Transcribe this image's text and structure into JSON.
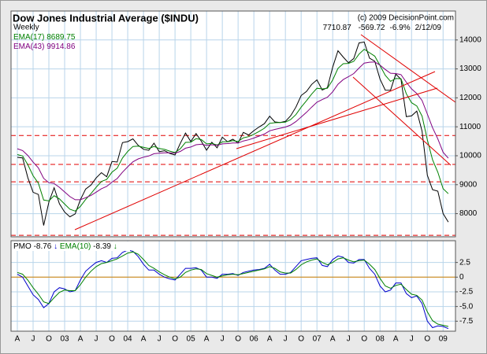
{
  "chart_data": [
    {
      "type": "line",
      "title": "Dow Jones Industrial Average ($INDU)",
      "subtitle": "(c) 2009 DecisionPoint.com",
      "change": -569.72,
      "change_pct": {
        "value": -6.9,
        "label": "-6.9%"
      },
      "date": "2/12/09",
      "categories": [
        "A",
        null,
        null,
        "J",
        null,
        null,
        "O",
        null,
        null,
        "03",
        null,
        null,
        "A",
        null,
        null,
        "J",
        null,
        null,
        "O",
        null,
        null,
        "04",
        null,
        null,
        "A",
        null,
        null,
        "J",
        null,
        null,
        "O",
        null,
        null,
        "05",
        null,
        null,
        "A",
        null,
        null,
        "J",
        null,
        null,
        "O",
        null,
        null,
        "06",
        null,
        null,
        "A",
        null,
        null,
        "J",
        null,
        null,
        "O",
        null,
        null,
        "07",
        null,
        null,
        "A",
        null,
        null,
        "J",
        null,
        null,
        "O",
        null,
        null,
        "08",
        null,
        null,
        "A",
        null,
        null,
        "J",
        null,
        null,
        "O",
        null,
        null,
        "09",
        null
      ],
      "series": [
        {
          "name": "Weekly",
          "color": "#000000",
          "values": [
            9946,
            9925,
            9243,
            8737,
            8663,
            7592,
            8397,
            8896,
            8342,
            8053,
            7891,
            7992,
            8480,
            8850,
            8985,
            9234,
            9416,
            9275,
            9801,
            9782,
            10454,
            10488,
            10583,
            10357,
            10226,
            10188,
            10435,
            10140,
            10174,
            10080,
            10027,
            10428,
            10783,
            10490,
            10766,
            10504,
            10193,
            10467,
            10275,
            10641,
            10482,
            10569,
            10440,
            10806,
            10718,
            10865,
            10993,
            11109,
            11367,
            11168,
            11150,
            11186,
            11381,
            11679,
            12081,
            12221,
            12463,
            12622,
            12269,
            12354,
            13063,
            13628,
            13409,
            13212,
            13358,
            13896,
            13930,
            13372,
            13265,
            12650,
            12266,
            12263,
            12820,
            12638,
            11350,
            11378,
            11544,
            10851,
            9325,
            8829,
            8776,
            8001,
            7710.87
          ]
        },
        {
          "name": "EMA(17)",
          "color": "#008000",
          "values": [
            10040,
            9990,
            9690,
            9310,
            9050,
            8470,
            8440,
            8620,
            8510,
            8330,
            8150,
            8090,
            8250,
            8490,
            8690,
            8910,
            9110,
            9180,
            9430,
            9570,
            9920,
            10150,
            10320,
            10330,
            10290,
            10250,
            10320,
            10250,
            10220,
            10160,
            10110,
            10240,
            10460,
            10470,
            10590,
            10560,
            10410,
            10430,
            10370,
            10480,
            10480,
            10520,
            10490,
            10620,
            10660,
            10740,
            10840,
            10950,
            11120,
            11140,
            11150,
            11160,
            11250,
            11420,
            11680,
            11900,
            12130,
            12330,
            12310,
            12330,
            12620,
            13020,
            13180,
            13190,
            13260,
            13510,
            13680,
            13560,
            13440,
            13120,
            12780,
            12570,
            12670,
            12660,
            12140,
            11830,
            11720,
            11370,
            10550,
            9860,
            9430,
            8860,
            8689.75
          ]
        },
        {
          "name": "EMA(43)",
          "color": "#800080",
          "values": [
            10240,
            10180,
            10010,
            9780,
            9580,
            9220,
            9070,
            9040,
            8910,
            8750,
            8590,
            8480,
            8480,
            8550,
            8630,
            8740,
            8860,
            8940,
            9090,
            9210,
            9430,
            9620,
            9790,
            9890,
            9950,
            9990,
            10070,
            10090,
            10100,
            10100,
            10090,
            10150,
            10260,
            10300,
            10380,
            10400,
            10360,
            10380,
            10360,
            10410,
            10420,
            10440,
            10440,
            10510,
            10550,
            10610,
            10680,
            10750,
            10860,
            10910,
            10950,
            10990,
            11060,
            11180,
            11340,
            11500,
            11680,
            11850,
            11940,
            12020,
            12210,
            12470,
            12630,
            12730,
            12840,
            13030,
            13200,
            13230,
            13240,
            13130,
            12980,
            12850,
            12840,
            12800,
            12540,
            12310,
            12150,
            11910,
            11440,
            10970,
            10580,
            10120,
            9914.86
          ]
        }
      ],
      "ylim": [
        7200,
        15000
      ],
      "yticks": [
        8000,
        9000,
        10000,
        11000,
        12000,
        13000,
        14000
      ],
      "hlines": [
        7250,
        9100,
        9700,
        10700
      ],
      "grid": true
    },
    {
      "type": "line",
      "series": [
        {
          "name": "PMO",
          "color": "#0000cc",
          "values": [
            0.5,
            0,
            -1.5,
            -3,
            -3.8,
            -5.2,
            -4.5,
            -2.5,
            -1.8,
            -2,
            -2.5,
            -2.3,
            -0.5,
            1,
            1.8,
            2.5,
            2.8,
            2.5,
            3.2,
            3.3,
            4.2,
            4.6,
            4.4,
            3.5,
            2.2,
            1.2,
            1.2,
            0.5,
            0,
            -0.3,
            -0.5,
            0.5,
            1.5,
            1.5,
            1.6,
            1.2,
            0,
            0,
            -0.2,
            0.5,
            0.5,
            0.6,
            0.3,
            0.8,
            1,
            1.2,
            1.3,
            1.5,
            2.2,
            1.2,
            0.5,
            0.5,
            0.8,
            1.8,
            2.8,
            3,
            3.2,
            3.3,
            2,
            1.8,
            3,
            3.6,
            3.4,
            2.5,
            2.4,
            3,
            3,
            1.5,
            0.5,
            -1.5,
            -2.5,
            -2.2,
            -1,
            -1,
            -2.8,
            -3.5,
            -3.2,
            -4.5,
            -7.5,
            -8.6,
            -8.3,
            -8.4,
            -8.76
          ]
        },
        {
          "name": "EMA(10)",
          "color": "#008000",
          "values": [
            0.8,
            0.5,
            -0.5,
            -1.8,
            -2.9,
            -4.2,
            -4.5,
            -3.5,
            -2.6,
            -2.2,
            -2.3,
            -2.3,
            -1.3,
            0,
            1,
            1.8,
            2.3,
            2.5,
            2.8,
            3.1,
            3.6,
            4.1,
            4.3,
            3.9,
            3,
            2,
            1.5,
            0.9,
            0.4,
            0,
            -0.3,
            0,
            0.8,
            1.2,
            1.4,
            1.3,
            0.6,
            0.3,
            0,
            0.2,
            0.4,
            0.5,
            0.4,
            0.6,
            0.8,
            1,
            1.2,
            1.4,
            1.8,
            1.5,
            0.9,
            0.7,
            0.7,
            1.3,
            2.1,
            2.6,
            2.9,
            3.1,
            2.5,
            2.1,
            2.5,
            3.1,
            3.3,
            2.9,
            2.6,
            2.8,
            2.9,
            2.2,
            1.3,
            -0.2,
            -1.5,
            -1.9,
            -1.4,
            -1.2,
            -2.1,
            -2.9,
            -3.1,
            -3.9,
            -5.9,
            -7.4,
            -8,
            -8.2,
            -8.39
          ]
        }
      ],
      "ylim": [
        -9.2,
        6.2
      ],
      "yticks": [
        2.5,
        0,
        -2.5,
        {
          "value": -5,
          "label": "-5.0"
        },
        -7.5
      ],
      "ref_line": 0,
      "grid": true
    }
  ]
}
